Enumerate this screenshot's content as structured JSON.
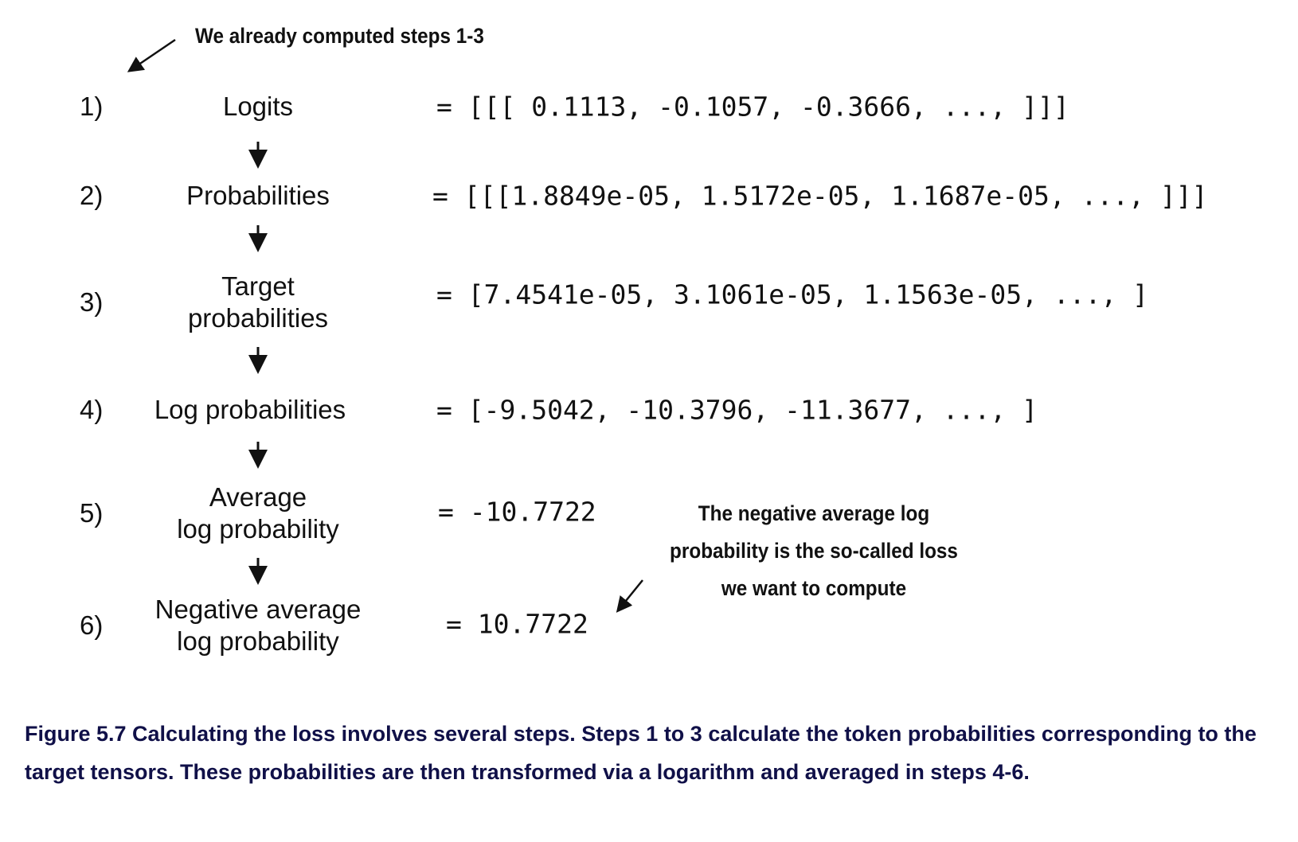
{
  "annotations": {
    "top": "We already computed steps 1-3",
    "right": [
      "The negative average log",
      "probability is the so-called loss",
      "we want to compute"
    ]
  },
  "steps": [
    {
      "number": "1)",
      "label": [
        "Logits"
      ],
      "value": "= [[[ 0.1113, -0.1057, -0.3666,  ..., ]]]"
    },
    {
      "number": "2)",
      "label": [
        "Probabilities"
      ],
      "value": "= [[[1.8849e-05, 1.5172e-05, 1.1687e-05,  ..., ]]]"
    },
    {
      "number": "3)",
      "label": [
        "Target",
        "probabilities"
      ],
      "value": "= [7.4541e-05, 3.1061e-05, 1.1563e-05, ..., ]"
    },
    {
      "number": "4)",
      "label": [
        "Log probabilities"
      ],
      "value": "= [-9.5042, -10.3796, -11.3677, ..., ]"
    },
    {
      "number": "5)",
      "label": [
        "Average",
        "log probability"
      ],
      "value": "= -10.7722"
    },
    {
      "number": "6)",
      "label": [
        "Negative average",
        "log probability"
      ],
      "value": "= 10.7722"
    }
  ],
  "caption": "Figure 5.7 Calculating the loss involves several steps. Steps 1 to 3 calculate the token probabilities corresponding to the target tensors. These probabilities are then transformed via a logarithm and averaged in steps 4-6.",
  "colors": {
    "caption": "#101048",
    "text": "#111111"
  }
}
